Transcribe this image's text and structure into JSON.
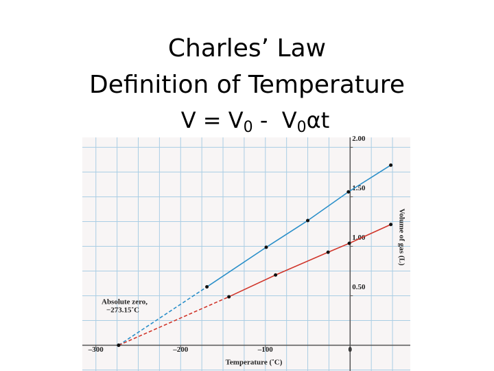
{
  "chart_data": {
    "type": "line",
    "title": "Charles’ Law",
    "subtitle": "Definition of Temperature",
    "equation": [
      "V = V",
      "0",
      " -  V",
      "0",
      "αt"
    ],
    "xlabel": "Temperature (˚C)",
    "ylabel": "Volume of gas (L)",
    "annotations": [
      "Absolute zero,",
      "−273.15˚C"
    ],
    "xlim": [
      -316,
      71
    ],
    "ylim": [
      -0.26,
      2.1
    ],
    "xticks": [
      {
        "value": -300,
        "label": "–300"
      },
      {
        "value": -200,
        "label": "–200"
      },
      {
        "value": -100,
        "label": "–100"
      },
      0
    ],
    "yticks": [
      {
        "value": 0.5,
        "label": "0.50"
      },
      {
        "value": 1,
        "label": "1.00"
      },
      {
        "value": 1.5,
        "label": "1.50"
      },
      {
        "value": 2,
        "label": "2.00"
      }
    ],
    "minor_xticks": [
      -300,
      -275,
      -250,
      -225,
      -200,
      -175,
      -150,
      -125,
      -100,
      -75,
      -50,
      -25,
      0,
      25,
      50
    ],
    "minor_yticks": [
      -0.25,
      0,
      0.25,
      0.5,
      0.75,
      1,
      1.25,
      1.5,
      1.75,
      2
    ],
    "grid": true,
    "series": [
      {
        "color": "#2a8fc9",
        "x": [
          -273.15,
          -169,
          -99,
          -50,
          -2,
          48
        ],
        "values": [
          0,
          0.59,
          0.99,
          1.26,
          1.55,
          1.82
        ]
      },
      {
        "color": "#d0352a",
        "x": [
          -273.15,
          -143,
          -88,
          -26,
          -1,
          48
        ],
        "values": [
          0,
          0.49,
          0.71,
          0.94,
          1.03,
          1.22
        ]
      }
    ]
  }
}
